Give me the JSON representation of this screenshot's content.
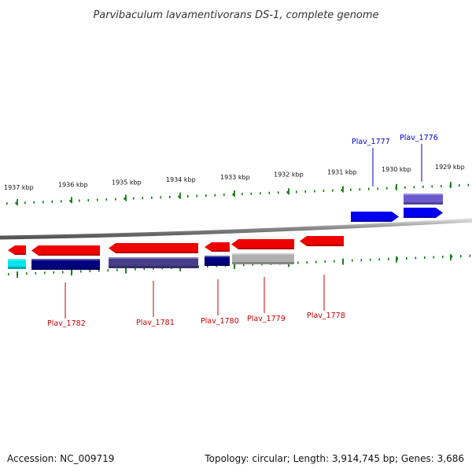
{
  "title": "Parvibaculum lavamentivorans DS-1, complete genome",
  "footer": {
    "accession": "Accession: NC_009719",
    "topology": "Topology: circular; Length: 3,914,745 bp; Genes: 3,686"
  },
  "colors": {
    "forward_gene": "#0000ee",
    "reverse_gene": "#ee0000",
    "backbone": "#777777",
    "tick": "#117711",
    "label_forward": "#0000cc",
    "label_reverse": "#cc0000"
  },
  "axis": {
    "unit": "kbp",
    "ticks": [
      {
        "label": "1937 kbp"
      },
      {
        "label": "1936 kbp"
      },
      {
        "label": "1935 kbp"
      },
      {
        "label": "1934 kbp"
      },
      {
        "label": "1933 kbp"
      },
      {
        "label": "1932 kbp"
      },
      {
        "label": "1931 kbp"
      },
      {
        "label": "1930 kbp"
      },
      {
        "label": "1929 kbp"
      }
    ]
  },
  "genes": [
    {
      "name": "Plav_1776",
      "strand": "forward",
      "color": "#0000ee",
      "sub_color": "#6a5acd",
      "labeled": true
    },
    {
      "name": "Plav_1777",
      "strand": "forward",
      "color": "#0000ee",
      "labeled": true
    },
    {
      "name": "Plav_1778",
      "strand": "reverse",
      "color": "#ee0000",
      "labeled": true
    },
    {
      "name": "Plav_1779",
      "strand": "reverse",
      "color": "#ee0000",
      "sub_color": "#b0b0b0",
      "labeled": true
    },
    {
      "name": "Plav_1780",
      "strand": "reverse",
      "color": "#ee0000",
      "sub_color": "#000080",
      "labeled": true
    },
    {
      "name": "Plav_1781",
      "strand": "reverse",
      "color": "#ee0000",
      "sub_color": "#483d8b",
      "labeled": true
    },
    {
      "name": "Plav_1782",
      "strand": "reverse",
      "color": "#ee0000",
      "sub_color": "#000080",
      "labeled": true
    },
    {
      "name": "",
      "strand": "reverse",
      "color": "#ee0000",
      "sub_color": "#00e5ee",
      "labeled": false
    }
  ]
}
